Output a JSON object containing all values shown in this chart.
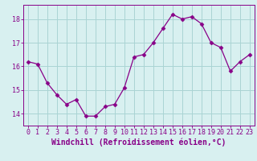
{
  "x": [
    0,
    1,
    2,
    3,
    4,
    5,
    6,
    7,
    8,
    9,
    10,
    11,
    12,
    13,
    14,
    15,
    16,
    17,
    18,
    19,
    20,
    21,
    22,
    23
  ],
  "y": [
    16.2,
    16.1,
    15.3,
    14.8,
    14.4,
    14.6,
    13.9,
    13.9,
    14.3,
    14.4,
    15.1,
    16.4,
    16.5,
    17.0,
    17.6,
    18.2,
    18.0,
    18.1,
    17.8,
    17.0,
    16.8,
    15.8,
    16.2,
    16.5
  ],
  "line_color": "#880088",
  "marker": "D",
  "marker_size": 2.5,
  "bg_color": "#d8f0f0",
  "grid_color": "#aad4d4",
  "ylim": [
    13.5,
    18.6
  ],
  "xlim": [
    -0.5,
    23.5
  ],
  "yticks": [
    14,
    15,
    16,
    17,
    18
  ],
  "xticks": [
    0,
    1,
    2,
    3,
    4,
    5,
    6,
    7,
    8,
    9,
    10,
    11,
    12,
    13,
    14,
    15,
    16,
    17,
    18,
    19,
    20,
    21,
    22,
    23
  ],
  "xlabel": "Windchill (Refroidissement éolien,°C)",
  "xlabel_color": "#880088",
  "tick_color": "#880088",
  "axis_color": "#880088",
  "font_size": 6.0,
  "label_font_size": 7.0
}
